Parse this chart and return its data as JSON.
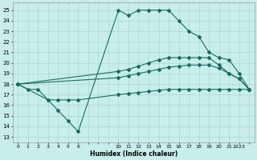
{
  "bg_color": "#c8eeeb",
  "grid_color": "#aad8d4",
  "line_color": "#1a6b63",
  "xlabel": "Humidex (Indice chaleur)",
  "xlim": [
    -0.5,
    23.5
  ],
  "ylim": [
    12.5,
    25.7
  ],
  "yticks": [
    13,
    14,
    15,
    16,
    17,
    18,
    19,
    20,
    21,
    22,
    23,
    24,
    25
  ],
  "xtick_positions": [
    0,
    1,
    2,
    3,
    4,
    5,
    6,
    7,
    8,
    9,
    10,
    11,
    12,
    13,
    14,
    15,
    16,
    17,
    18,
    19,
    20,
    21,
    22,
    23
  ],
  "xtick_labels": [
    "0",
    "1",
    "2",
    "3",
    "4",
    "5",
    "6",
    "",
    "",
    "",
    "10",
    "11",
    "12",
    "13",
    "14",
    "15",
    "16",
    "17",
    "18",
    "19",
    "20",
    "21",
    "2223",
    ""
  ],
  "line1_x": [
    0,
    1,
    2,
    3,
    4,
    5,
    6,
    10,
    11,
    12,
    13,
    14,
    15,
    16,
    17,
    18,
    19,
    20,
    21,
    22,
    23
  ],
  "line1_y": [
    18.0,
    17.5,
    17.5,
    16.5,
    15.5,
    14.5,
    13.5,
    25.0,
    24.5,
    25.0,
    25.0,
    25.0,
    25.0,
    24.0,
    23.0,
    22.5,
    21.0,
    20.5,
    20.3,
    19.0,
    17.5
  ],
  "line2_x": [
    0,
    10,
    11,
    12,
    13,
    14,
    15,
    16,
    17,
    18,
    19,
    20,
    21,
    22,
    23
  ],
  "line2_y": [
    18.0,
    19.2,
    19.4,
    19.7,
    20.0,
    20.3,
    20.5,
    20.5,
    20.5,
    20.5,
    20.5,
    19.8,
    19.0,
    18.5,
    17.5
  ],
  "line3_x": [
    0,
    10,
    11,
    12,
    13,
    14,
    15,
    16,
    17,
    18,
    19,
    20,
    21,
    22,
    23
  ],
  "line3_y": [
    18.0,
    18.6,
    18.8,
    19.0,
    19.2,
    19.4,
    19.6,
    19.7,
    19.8,
    19.8,
    19.8,
    19.5,
    19.0,
    18.5,
    17.5
  ],
  "line4_x": [
    0,
    3,
    4,
    5,
    6,
    10,
    11,
    12,
    13,
    14,
    15,
    16,
    17,
    18,
    19,
    20,
    21,
    22,
    23
  ],
  "line4_y": [
    18.0,
    16.5,
    16.5,
    16.5,
    16.5,
    17.0,
    17.1,
    17.2,
    17.3,
    17.4,
    17.5,
    17.5,
    17.5,
    17.5,
    17.5,
    17.5,
    17.5,
    17.5,
    17.5
  ]
}
